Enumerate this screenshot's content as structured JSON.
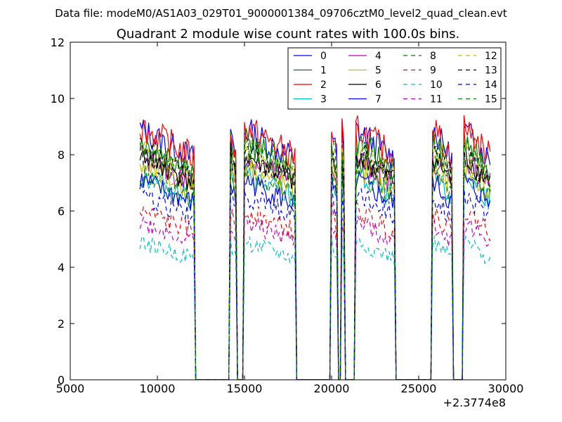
{
  "suptitle": "Data file: modeM0/AS1A03_029T01_9000001384_09706cztM0_level2_quad_clean.evt",
  "chart_data": {
    "type": "line",
    "title": "Quadrant 2 module wise count rates with 100.0s bins.",
    "xlabel": "",
    "ylabel": "",
    "x_offset_label": "+2.3774e8",
    "xlim": [
      5000,
      30000
    ],
    "ylim": [
      0,
      12
    ],
    "xticks": [
      5000,
      10000,
      15000,
      20000,
      25000,
      30000
    ],
    "yticks": [
      0,
      2,
      4,
      6,
      8,
      10,
      12
    ],
    "grid": false,
    "legend_position": "top-right",
    "legend_columns": 4,
    "observing_segments": [
      {
        "x_start": 9000,
        "x_end": 12100
      },
      {
        "x_start": 14200,
        "x_end": 14500
      },
      {
        "x_start": 15000,
        "x_end": 17900
      },
      {
        "x_start": 20000,
        "x_end": 20300
      },
      {
        "x_start": 20600,
        "x_end": 20700
      },
      {
        "x_start": 21400,
        "x_end": 23600
      },
      {
        "x_start": 25800,
        "x_end": 26900
      },
      {
        "x_start": 27600,
        "x_end": 29100
      }
    ],
    "series": [
      {
        "name": "0",
        "color": "#0000ff",
        "style": "solid",
        "level": 8.9
      },
      {
        "name": "1",
        "color": "#008000",
        "style": "solid",
        "level": 8.5
      },
      {
        "name": "2",
        "color": "#ff0000",
        "style": "solid",
        "level": 9.0
      },
      {
        "name": "3",
        "color": "#00bfbf",
        "style": "solid",
        "level": 7.3
      },
      {
        "name": "4",
        "color": "#bf00bf",
        "style": "solid",
        "level": 7.9
      },
      {
        "name": "5",
        "color": "#bfbf00",
        "style": "solid",
        "level": 7.6
      },
      {
        "name": "6",
        "color": "#000000",
        "style": "solid",
        "level": 8.0
      },
      {
        "name": "7",
        "color": "#0000ff",
        "style": "solid",
        "level": 7.1
      },
      {
        "name": "8",
        "color": "#008000",
        "style": "dashed",
        "level": 7.4
      },
      {
        "name": "9",
        "color": "#ff0000",
        "style": "dashed",
        "level": 6.0
      },
      {
        "name": "10",
        "color": "#00bfbf",
        "style": "dashed",
        "level": 4.9
      },
      {
        "name": "11",
        "color": "#bf00bf",
        "style": "dashed",
        "level": 5.6
      },
      {
        "name": "12",
        "color": "#bfbf00",
        "style": "dashed",
        "level": 8.2
      },
      {
        "name": "13",
        "color": "#000000",
        "style": "dashed",
        "level": 8.1
      },
      {
        "name": "14",
        "color": "#0000ff",
        "style": "dashed",
        "level": 6.6
      },
      {
        "name": "15",
        "color": "#008000",
        "style": "dashed",
        "level": 8.3
      }
    ]
  }
}
